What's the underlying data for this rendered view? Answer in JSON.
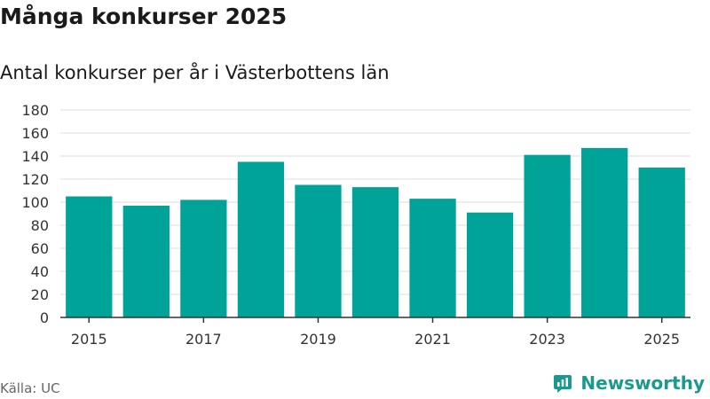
{
  "header": {
    "title": "Många konkurser 2025",
    "subtitle": "Antal konkurser per år i Västerbottens län"
  },
  "footer": {
    "source": "Källa: UC",
    "brand": "Newsworthy"
  },
  "colors": {
    "bar": "#00a397",
    "brand": "#1a9a8c",
    "grid": "#dedede",
    "axis": "#333333"
  },
  "chart_data": {
    "type": "bar",
    "title": "Många konkurser 2025",
    "subtitle": "Antal konkurser per år i Västerbottens län",
    "xlabel": "",
    "ylabel": "",
    "categories": [
      "2015",
      "2016",
      "2017",
      "2018",
      "2019",
      "2020",
      "2021",
      "2022",
      "2023",
      "2024",
      "2025"
    ],
    "values": [
      105,
      97,
      102,
      135,
      115,
      113,
      103,
      91,
      141,
      147,
      130
    ],
    "x_tick_labels": [
      "2015",
      "2017",
      "2019",
      "2021",
      "2023",
      "2025"
    ],
    "y_ticks": [
      0,
      20,
      40,
      60,
      80,
      100,
      120,
      140,
      160,
      180
    ],
    "ylim": [
      0,
      180
    ],
    "grid": true,
    "legend": "none"
  }
}
